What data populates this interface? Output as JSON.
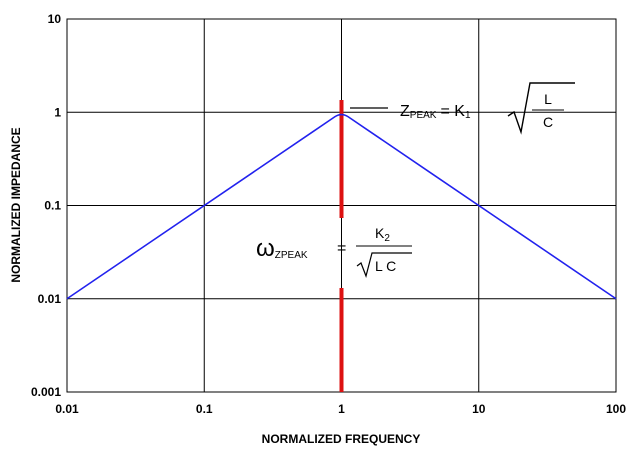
{
  "chart_data": {
    "type": "line",
    "title": "",
    "xlabel": "NORMALIZED FREQUENCY",
    "ylabel": "NORMALIZED IMPEDANCE",
    "x_scale": "log",
    "y_scale": "log",
    "xlim": [
      0.01,
      100
    ],
    "ylim": [
      0.001,
      10
    ],
    "x_ticks": [
      "0.01",
      "0.1",
      "1",
      "10",
      "100"
    ],
    "y_ticks": [
      "0.001",
      "0.01",
      "0.1",
      "1",
      "10"
    ],
    "grid": true,
    "series": [
      {
        "color": "#2222ee",
        "x": [
          0.01,
          0.1,
          0.5,
          0.8,
          1,
          1.25,
          2,
          10,
          100
        ],
        "y": [
          0.01,
          0.1,
          0.5,
          0.8,
          1,
          0.8,
          0.5,
          0.1,
          0.01
        ]
      }
    ],
    "marker_line": {
      "x": 1,
      "color": "#dd1111"
    },
    "annotations": {
      "zpeak": {
        "z": "Z",
        "sub": "PEAK",
        "eq": "= K",
        "k_sub": "1",
        "num": "L",
        "den": "C"
      },
      "omega": {
        "w": "ω",
        "sub": "ZPEAK",
        "eq": "=",
        "num": "K",
        "num_sub": "2",
        "den": "L C"
      }
    },
    "colors": {
      "grid": "#000000",
      "curve": "#2222ee",
      "marker": "#dd1111"
    }
  }
}
